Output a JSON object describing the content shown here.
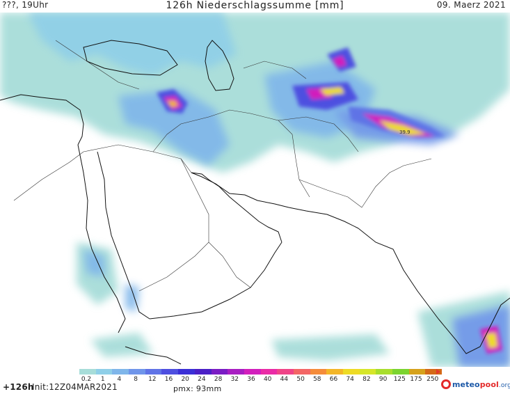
{
  "header": {
    "valid_label": "???, 19Uhr",
    "title": "126h Niederschlagssumme [mm]",
    "date": "09. Maerz 2021"
  },
  "map": {
    "region": "Middle East / Arabian Peninsula / South Asia",
    "contour_label": "39.9"
  },
  "footer": {
    "lead_time": "+126h",
    "init": "Init:12Z04MAR2021",
    "pmx": "pmx: 93mm",
    "brand": {
      "main": "meteo",
      "accent": "pool",
      "tld": ".org"
    }
  },
  "legend": {
    "levels": [
      "0.2",
      "1",
      "4",
      "8",
      "12",
      "16",
      "20",
      "24",
      "28",
      "32",
      "36",
      "40",
      "44",
      "50",
      "58",
      "66",
      "74",
      "82",
      "90",
      "125",
      "175",
      "250"
    ],
    "colors": [
      "#a7ddd9",
      "#8fcfe8",
      "#7fb6ea",
      "#6f95ea",
      "#5f73e6",
      "#4e4fe0",
      "#3b2fd6",
      "#4a1fc6",
      "#7a1cc4",
      "#a81ec2",
      "#d21fbc",
      "#ea2ba6",
      "#f04488",
      "#f36666",
      "#f58c3a",
      "#f3b628",
      "#eedb25",
      "#d6e62a",
      "#a8de2d",
      "#7cd430",
      "#d6a21c",
      "#d46a18"
    ],
    "arrow_color": "#e4382a"
  }
}
